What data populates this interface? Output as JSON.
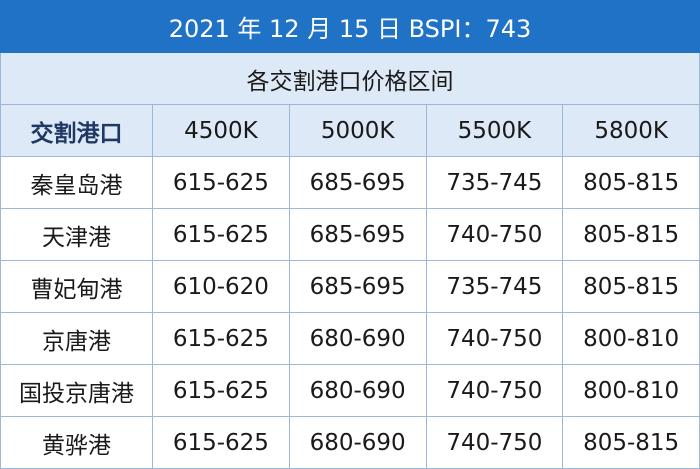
{
  "title": "2021 年 12 月 15 日 BSPI：743",
  "subtitle": "各交割港口价格区间",
  "header": [
    "交割港口",
    "4500K",
    "5000K",
    "5500K",
    "5800K"
  ],
  "rows": [
    [
      "秦皇岛港",
      "615-625",
      "685-695",
      "735-745",
      "805-815"
    ],
    [
      "天津港",
      "615-625",
      "685-695",
      "740-750",
      "805-815"
    ],
    [
      "曹妃甸港",
      "610-620",
      "685-695",
      "735-745",
      "805-815"
    ],
    [
      "京唐港",
      "615-625",
      "680-690",
      "740-750",
      "800-810"
    ],
    [
      "国投京唐港",
      "615-625",
      "680-690",
      "740-750",
      "800-810"
    ],
    [
      "黄骅港",
      "615-625",
      "680-690",
      "740-750",
      "805-815"
    ]
  ]
}
